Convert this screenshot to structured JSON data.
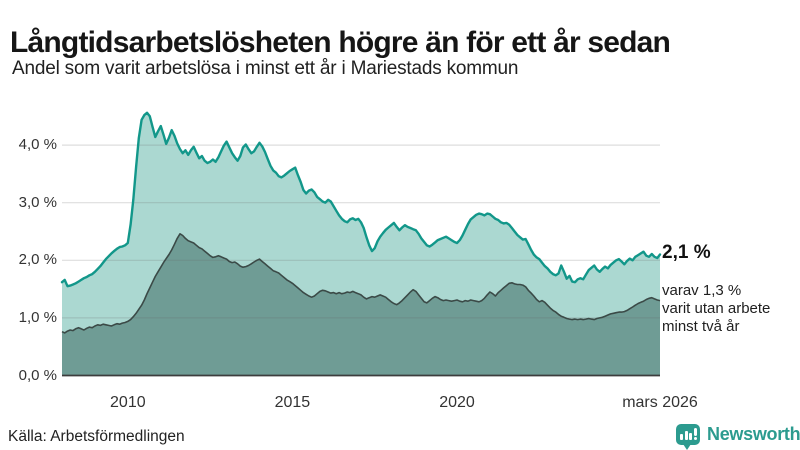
{
  "header": {
    "title": "Långtidsarbetslösheten högre än för ett år sedan",
    "subtitle": "Andel som varit arbetslösa i minst ett år i Mariestads kommun"
  },
  "annotations": {
    "latest_total": "2,1 %",
    "secondary_line1": "varav 1,3 %",
    "secondary_line2": "varit utan arbete",
    "secondary_line3": "minst två år"
  },
  "footer": {
    "source": "Källa: Arbetsförmedlingen",
    "brand": "Newsworthy",
    "brand_icon": "newsworthy-speech-bubble-bar-chart-icon"
  },
  "colors": {
    "primary_line": "#12978a",
    "primary_fill": "#abd8d1",
    "secondary_line": "#3b4a47",
    "secondary_fill": "#6f9c95",
    "grid": "#6b6b6b",
    "axis": "#3d3d3d",
    "brand_teal": "#2c9b8f"
  },
  "chart_data": {
    "type": "area",
    "title": "Långtidsarbetslösheten högre än för ett år sedan",
    "x_start_year": 2008.0,
    "x_end_year": 2026.1667,
    "x_step_months": 1,
    "ylim": [
      0,
      4.75
    ],
    "grid": true,
    "legend_position": "right-annotations",
    "y_ticks": [
      {
        "v": 0,
        "label": "0,0 %"
      },
      {
        "v": 1,
        "label": "1,0 %"
      },
      {
        "v": 2,
        "label": "2,0 %"
      },
      {
        "v": 3,
        "label": "3,0 %"
      },
      {
        "v": 4,
        "label": "4,0 %"
      }
    ],
    "x_ticks": [
      {
        "t": 2010,
        "label": "2010"
      },
      {
        "t": 2015,
        "label": "2015"
      },
      {
        "t": 2020,
        "label": "2020"
      },
      {
        "t": 2026.1667,
        "label": "mars 2026"
      }
    ],
    "series": [
      {
        "name": "Andel som varit arbetslösa i minst ett år",
        "latest_value": 2.1,
        "values": [
          1.62,
          1.66,
          1.55,
          1.56,
          1.58,
          1.6,
          1.63,
          1.66,
          1.69,
          1.71,
          1.74,
          1.76,
          1.8,
          1.85,
          1.9,
          1.96,
          2.02,
          2.07,
          2.12,
          2.16,
          2.2,
          2.23,
          2.24,
          2.26,
          2.3,
          2.62,
          3.05,
          3.62,
          4.12,
          4.44,
          4.52,
          4.56,
          4.5,
          4.32,
          4.14,
          4.24,
          4.33,
          4.18,
          4.02,
          4.13,
          4.26,
          4.16,
          4.03,
          3.93,
          3.86,
          3.91,
          3.83,
          3.91,
          3.97,
          3.87,
          3.77,
          3.81,
          3.73,
          3.69,
          3.71,
          3.75,
          3.71,
          3.79,
          3.89,
          3.99,
          4.06,
          3.96,
          3.86,
          3.79,
          3.73,
          3.81,
          3.96,
          4.01,
          3.93,
          3.86,
          3.89,
          3.97,
          4.04,
          3.98,
          3.88,
          3.76,
          3.64,
          3.56,
          3.52,
          3.46,
          3.44,
          3.47,
          3.51,
          3.55,
          3.58,
          3.61,
          3.48,
          3.36,
          3.22,
          3.16,
          3.21,
          3.23,
          3.18,
          3.1,
          3.06,
          3.02,
          3.0,
          3.05,
          3.02,
          2.94,
          2.86,
          2.78,
          2.72,
          2.68,
          2.66,
          2.71,
          2.73,
          2.7,
          2.72,
          2.66,
          2.56,
          2.4,
          2.26,
          2.16,
          2.21,
          2.33,
          2.41,
          2.47,
          2.53,
          2.57,
          2.61,
          2.65,
          2.58,
          2.52,
          2.57,
          2.61,
          2.58,
          2.56,
          2.54,
          2.52,
          2.46,
          2.38,
          2.32,
          2.26,
          2.24,
          2.27,
          2.31,
          2.35,
          2.37,
          2.39,
          2.41,
          2.38,
          2.35,
          2.32,
          2.3,
          2.35,
          2.43,
          2.53,
          2.63,
          2.71,
          2.75,
          2.79,
          2.81,
          2.8,
          2.78,
          2.81,
          2.8,
          2.76,
          2.72,
          2.7,
          2.66,
          2.64,
          2.65,
          2.62,
          2.56,
          2.5,
          2.44,
          2.4,
          2.36,
          2.37,
          2.28,
          2.18,
          2.1,
          2.05,
          2.02,
          1.96,
          1.9,
          1.86,
          1.8,
          1.76,
          1.74,
          1.77,
          1.91,
          1.8,
          1.68,
          1.73,
          1.63,
          1.62,
          1.67,
          1.69,
          1.67,
          1.75,
          1.83,
          1.87,
          1.91,
          1.84,
          1.8,
          1.85,
          1.89,
          1.86,
          1.92,
          1.96,
          2.0,
          2.02,
          1.98,
          1.93,
          1.99,
          2.03,
          2.0,
          2.06,
          2.09,
          2.12,
          2.15,
          2.08,
          2.06,
          2.11,
          2.06,
          2.04,
          2.1
        ]
      },
      {
        "name": "Varav utan arbete minst två år",
        "latest_value": 1.3,
        "values": [
          0.76,
          0.74,
          0.77,
          0.79,
          0.78,
          0.81,
          0.83,
          0.81,
          0.79,
          0.82,
          0.84,
          0.83,
          0.86,
          0.88,
          0.87,
          0.89,
          0.88,
          0.87,
          0.86,
          0.88,
          0.9,
          0.89,
          0.91,
          0.92,
          0.94,
          0.97,
          1.02,
          1.08,
          1.15,
          1.22,
          1.31,
          1.42,
          1.52,
          1.62,
          1.72,
          1.8,
          1.88,
          1.96,
          2.03,
          2.1,
          2.18,
          2.28,
          2.38,
          2.46,
          2.43,
          2.38,
          2.34,
          2.32,
          2.3,
          2.26,
          2.22,
          2.2,
          2.16,
          2.12,
          2.08,
          2.05,
          2.06,
          2.08,
          2.06,
          2.04,
          2.02,
          1.98,
          1.96,
          1.97,
          1.94,
          1.9,
          1.88,
          1.89,
          1.91,
          1.94,
          1.97,
          2.0,
          2.02,
          1.98,
          1.94,
          1.9,
          1.86,
          1.82,
          1.8,
          1.78,
          1.74,
          1.7,
          1.66,
          1.63,
          1.6,
          1.56,
          1.52,
          1.48,
          1.44,
          1.41,
          1.38,
          1.36,
          1.38,
          1.42,
          1.46,
          1.48,
          1.47,
          1.45,
          1.43,
          1.44,
          1.42,
          1.44,
          1.42,
          1.43,
          1.45,
          1.44,
          1.46,
          1.44,
          1.42,
          1.4,
          1.36,
          1.33,
          1.35,
          1.37,
          1.36,
          1.38,
          1.4,
          1.38,
          1.36,
          1.32,
          1.28,
          1.25,
          1.23,
          1.26,
          1.3,
          1.35,
          1.4,
          1.45,
          1.49,
          1.46,
          1.4,
          1.34,
          1.28,
          1.26,
          1.3,
          1.34,
          1.37,
          1.35,
          1.32,
          1.3,
          1.31,
          1.3,
          1.29,
          1.3,
          1.31,
          1.29,
          1.28,
          1.3,
          1.29,
          1.31,
          1.3,
          1.29,
          1.28,
          1.3,
          1.34,
          1.4,
          1.45,
          1.42,
          1.38,
          1.44,
          1.48,
          1.52,
          1.56,
          1.6,
          1.61,
          1.59,
          1.58,
          1.58,
          1.57,
          1.54,
          1.48,
          1.43,
          1.38,
          1.32,
          1.28,
          1.3,
          1.27,
          1.22,
          1.17,
          1.13,
          1.1,
          1.06,
          1.03,
          1.01,
          0.99,
          0.98,
          0.97,
          0.98,
          0.97,
          0.98,
          0.97,
          0.98,
          0.99,
          0.98,
          0.97,
          0.99,
          1.0,
          1.01,
          1.03,
          1.05,
          1.07,
          1.08,
          1.09,
          1.1,
          1.1,
          1.11,
          1.13,
          1.16,
          1.19,
          1.22,
          1.25,
          1.27,
          1.29,
          1.32,
          1.34,
          1.35,
          1.33,
          1.31,
          1.3
        ]
      }
    ]
  }
}
